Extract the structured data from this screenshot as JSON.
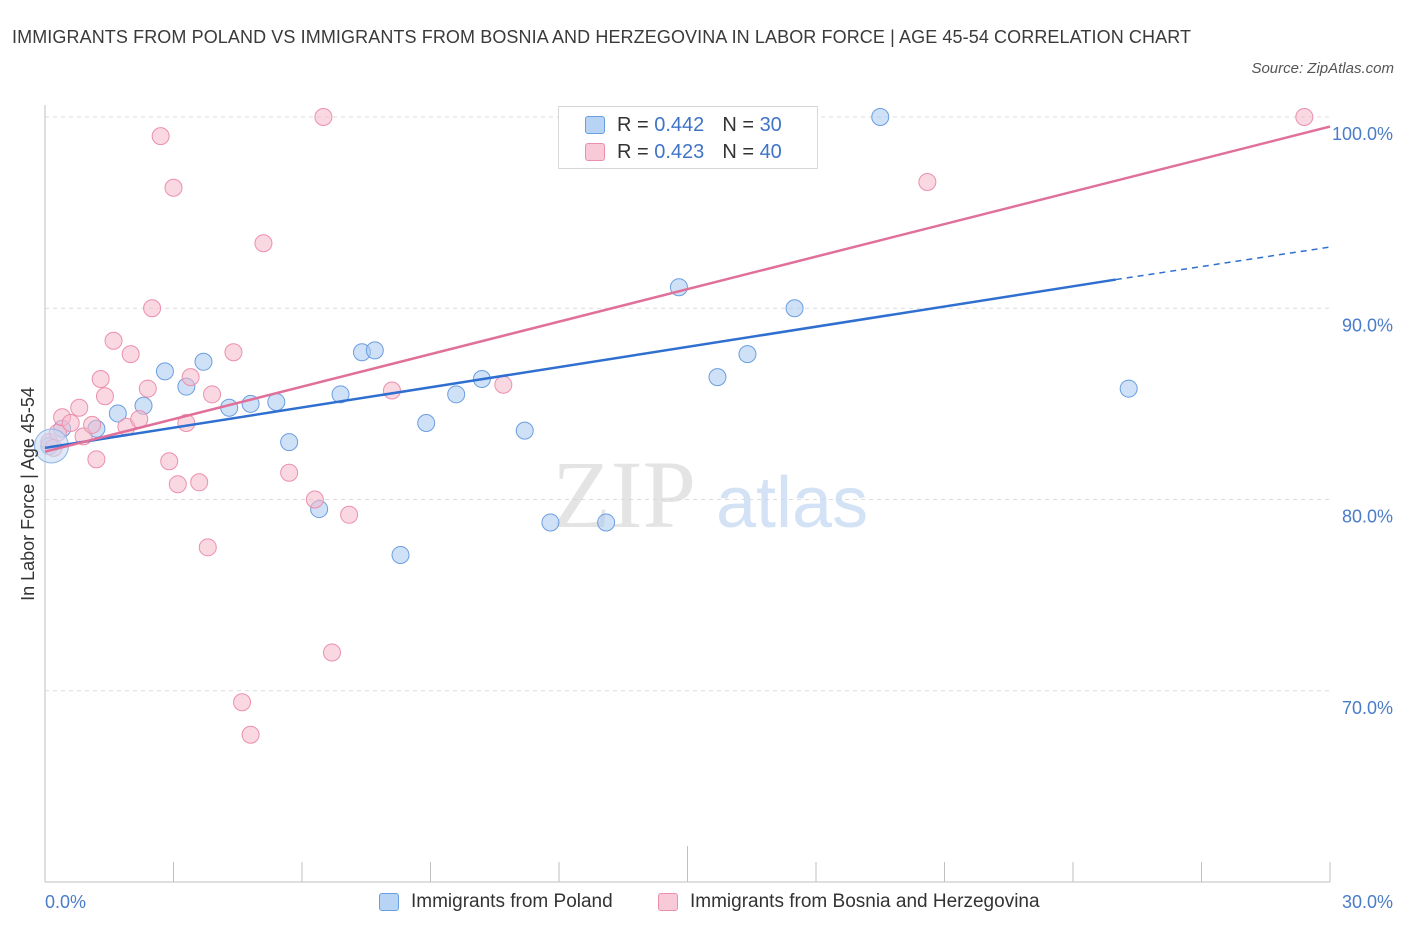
{
  "title": "IMMIGRANTS FROM POLAND VS IMMIGRANTS FROM BOSNIA AND HERZEGOVINA IN LABOR FORCE | AGE 45-54 CORRELATION CHART",
  "source": "Source: ZipAtlas.com",
  "watermark": {
    "zip": "ZIP",
    "atlas": "atlas"
  },
  "stats_legend": {
    "rows": [
      {
        "r_label": "R =",
        "r_value": "0.442",
        "n_label": "N =",
        "n_value": "30",
        "color": "#a8c8f0"
      },
      {
        "r_label": "R =",
        "r_value": "0.423",
        "n_label": "N =",
        "n_value": "40",
        "color": "#f5b8cb"
      }
    ]
  },
  "chart_data": {
    "type": "scatter",
    "ylabel": "In Labor Force | Age 45-54",
    "x_tick_labels": [
      "0.0%",
      "30.0%"
    ],
    "y_tick_labels": [
      "100.0%",
      "90.0%",
      "80.0%",
      "70.0%"
    ],
    "xlim": [
      0,
      30
    ],
    "ylim": [
      60,
      100
    ],
    "y_ticks": [
      100,
      90,
      80,
      70
    ],
    "grid": true,
    "legend_position": "bottom",
    "series": [
      {
        "name": "Immigrants from Poland",
        "color": "#a8c8f0",
        "stroke": "#6b9ee0",
        "line_color": "#2f6fd0",
        "trend": {
          "x0": 0,
          "y0": 82.7,
          "x1": 25,
          "y1": 91.5,
          "dash_to_x": 30,
          "dash_to_y": 93.2
        },
        "points": [
          [
            0.1,
            82.8
          ],
          [
            1.2,
            83.7
          ],
          [
            1.7,
            84.5
          ],
          [
            2.3,
            84.9
          ],
          [
            2.8,
            86.7
          ],
          [
            3.3,
            85.9
          ],
          [
            3.7,
            87.2
          ],
          [
            4.3,
            84.8
          ],
          [
            4.8,
            85.0
          ],
          [
            5.4,
            85.1
          ],
          [
            5.7,
            83.0
          ],
          [
            6.4,
            79.5
          ],
          [
            6.9,
            85.5
          ],
          [
            7.4,
            87.7
          ],
          [
            7.7,
            87.8
          ],
          [
            8.3,
            77.1
          ],
          [
            8.9,
            84.0
          ],
          [
            9.6,
            85.5
          ],
          [
            10.2,
            86.3
          ],
          [
            11.2,
            83.6
          ],
          [
            11.8,
            78.8
          ],
          [
            13.1,
            78.8
          ],
          [
            14.8,
            91.1
          ],
          [
            15.7,
            86.4
          ],
          [
            16.4,
            87.6
          ],
          [
            17.5,
            90.0
          ],
          [
            17.4,
            100.0
          ],
          [
            19.5,
            100.0
          ],
          [
            25.3,
            85.8
          ],
          [
            0.4,
            83.7
          ]
        ]
      },
      {
        "name": "Immigrants from Bosnia and Herzegovina",
        "color": "#f5b8cb",
        "stroke": "#ec8fae",
        "line_color": "#e0709a",
        "trend": {
          "x0": 0,
          "y0": 82.5,
          "x1": 30,
          "y1": 99.5
        },
        "points": [
          [
            0.1,
            83.0
          ],
          [
            0.3,
            83.5
          ],
          [
            0.4,
            84.3
          ],
          [
            0.6,
            84.0
          ],
          [
            0.8,
            84.8
          ],
          [
            0.9,
            83.3
          ],
          [
            1.1,
            83.9
          ],
          [
            1.2,
            82.1
          ],
          [
            1.3,
            86.3
          ],
          [
            1.4,
            85.4
          ],
          [
            1.6,
            88.3
          ],
          [
            1.9,
            83.8
          ],
          [
            2.0,
            87.6
          ],
          [
            2.2,
            84.2
          ],
          [
            2.4,
            85.8
          ],
          [
            2.5,
            90.0
          ],
          [
            2.7,
            99.0
          ],
          [
            2.9,
            82.0
          ],
          [
            3.0,
            96.3
          ],
          [
            3.1,
            80.8
          ],
          [
            3.3,
            84.0
          ],
          [
            3.4,
            86.4
          ],
          [
            3.6,
            80.9
          ],
          [
            3.8,
            77.5
          ],
          [
            3.9,
            85.5
          ],
          [
            4.4,
            87.7
          ],
          [
            4.6,
            69.4
          ],
          [
            4.8,
            67.7
          ],
          [
            5.1,
            93.4
          ],
          [
            5.7,
            81.4
          ],
          [
            6.3,
            80.0
          ],
          [
            6.5,
            100.0
          ],
          [
            6.7,
            72.0
          ],
          [
            7.1,
            79.2
          ],
          [
            8.1,
            85.7
          ],
          [
            10.7,
            86.0
          ],
          [
            15.4,
            100.0
          ],
          [
            20.6,
            96.6
          ],
          [
            29.4,
            100.0
          ],
          [
            0.2,
            82.7
          ]
        ]
      }
    ]
  },
  "bottom_legend": [
    {
      "label": "Immigrants from Poland",
      "color": "#a8c8f0",
      "stroke": "#6b9ee0"
    },
    {
      "label": "Immigrants from Bosnia and Herzegovina",
      "color": "#f5b8cb",
      "stroke": "#ec8fae"
    }
  ]
}
